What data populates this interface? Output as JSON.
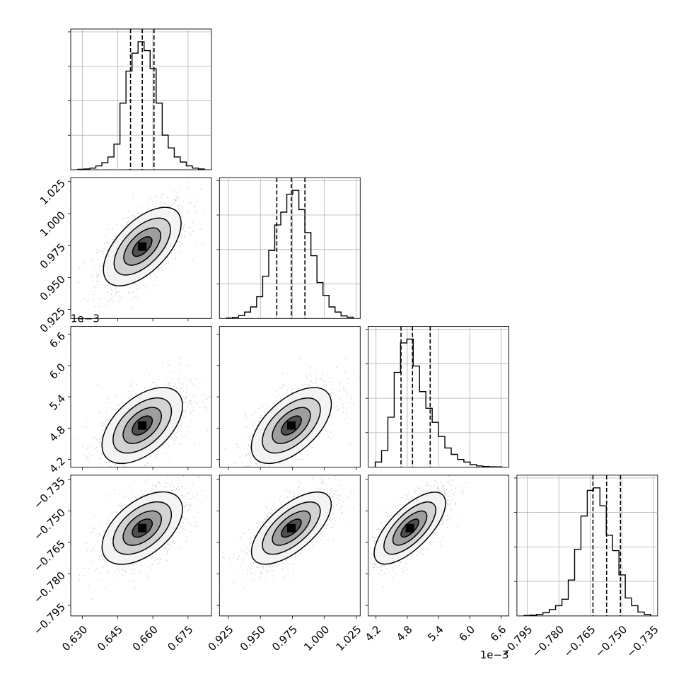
{
  "chart_data": {
    "type": "corner",
    "parameters": [
      {
        "range": [
          0.625,
          0.685
        ],
        "ticks": [
          "0.630",
          "0.645",
          "0.660",
          "0.675"
        ],
        "tick_values": [
          0.63,
          0.645,
          0.66,
          0.675
        ],
        "scale_label": "",
        "quantiles": [
          0.6505,
          0.6555,
          0.6605
        ]
      },
      {
        "range": [
          0.918,
          1.028
        ],
        "ticks": [
          "0.925",
          "0.950",
          "0.975",
          "1.000",
          "1.025"
        ],
        "tick_values": [
          0.925,
          0.95,
          0.975,
          1.0,
          1.025
        ],
        "scale_label": "",
        "quantiles": [
          0.9628,
          0.9742,
          0.9848
        ]
      },
      {
        "range": [
          4.05,
          6.75
        ],
        "ticks": [
          "4.2",
          "4.8",
          "5.4",
          "6.0",
          "6.6"
        ],
        "tick_values": [
          4.2,
          4.8,
          5.4,
          6.0,
          6.6
        ],
        "scale_label": "1e−3",
        "quantiles": [
          4.68,
          4.9,
          5.24
        ]
      },
      {
        "range": [
          -0.8,
          -0.733
        ],
        "ticks": [
          "−0.795",
          "−0.780",
          "−0.765",
          "−0.750",
          "−0.735"
        ],
        "tick_values": [
          -0.795,
          -0.78,
          -0.765,
          -0.75,
          -0.735
        ],
        "scale_label": "",
        "quantiles": [
          -0.7638,
          -0.7573,
          -0.7507
        ]
      }
    ],
    "histograms": [
      [
        0.003,
        0.006,
        0.013,
        0.03,
        0.055,
        0.1,
        0.2,
        0.52,
        0.77,
        0.91,
        1.0,
        0.93,
        0.79,
        0.52,
        0.27,
        0.17,
        0.1,
        0.06,
        0.03,
        0.013,
        0.006
      ],
      [
        0.003,
        0.009,
        0.022,
        0.05,
        0.09,
        0.17,
        0.33,
        0.53,
        0.73,
        0.83,
        0.97,
        1.0,
        0.85,
        0.67,
        0.49,
        0.28,
        0.18,
        0.09,
        0.05,
        0.02,
        0.01
      ],
      [
        0.04,
        0.13,
        0.39,
        0.74,
        0.97,
        1.0,
        0.79,
        0.59,
        0.46,
        0.35,
        0.24,
        0.15,
        0.1,
        0.06,
        0.04,
        0.02,
        0.01,
        0.005,
        0.003,
        0.002
      ],
      [
        0.003,
        0.006,
        0.012,
        0.025,
        0.05,
        0.08,
        0.13,
        0.28,
        0.52,
        0.78,
        0.98,
        1.0,
        0.86,
        0.63,
        0.51,
        0.32,
        0.14,
        0.08,
        0.03,
        0.012
      ]
    ],
    "pairs": [
      {
        "row": 1,
        "col": 0,
        "peak": [
          0.6555,
          0.9742
        ],
        "sd": [
          0.0082,
          0.0152
        ],
        "rho": 0.62
      },
      {
        "row": 2,
        "col": 0,
        "peak": [
          0.6555,
          4.85
        ],
        "sd": [
          0.0085,
          0.36
        ],
        "rho": 0.55
      },
      {
        "row": 2,
        "col": 1,
        "peak": [
          0.9742,
          4.85
        ],
        "sd": [
          0.0155,
          0.36
        ],
        "rho": 0.6
      },
      {
        "row": 3,
        "col": 0,
        "peak": [
          0.6555,
          -0.7582
        ],
        "sd": [
          0.0085,
          0.0085
        ],
        "rho": 0.55
      },
      {
        "row": 3,
        "col": 1,
        "peak": [
          0.9742,
          -0.7582
        ],
        "sd": [
          0.0155,
          0.0085
        ],
        "rho": 0.68
      },
      {
        "row": 3,
        "col": 2,
        "peak": [
          4.85,
          -0.7582
        ],
        "sd": [
          0.34,
          0.0085
        ],
        "rho": 0.72
      }
    ],
    "grid": true,
    "quantile_line_style": "dashed",
    "contour_color": "#000000",
    "point_color": "#7f7f7f"
  }
}
